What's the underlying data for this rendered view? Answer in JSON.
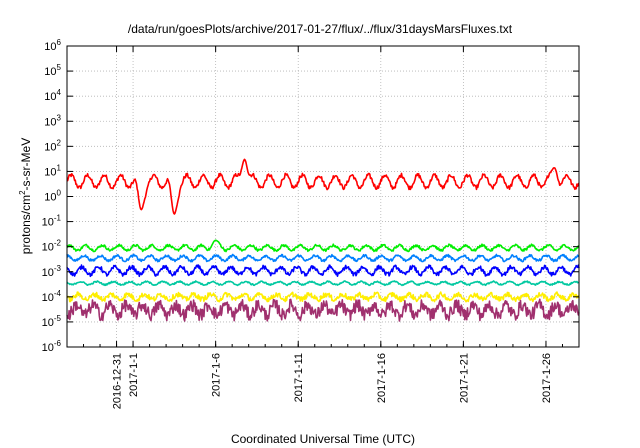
{
  "chart_data": {
    "type": "line",
    "title": "/data/run/goesPlots/archive/2017-01-27/flux/../flux/31daysMarsFluxes.txt",
    "xlabel": "Coordinated Universal Time (UTC)",
    "ylabel": "protons/cm²-s-sr-MeV",
    "y_scale": "log",
    "ylim": [
      1e-06,
      1000000.0
    ],
    "xlim": [
      "2016-12-28",
      "2017-01-28"
    ],
    "grid": true,
    "y_ticks": [
      {
        "value": 1e-06,
        "base": "10",
        "exp": "-6"
      },
      {
        "value": 1e-05,
        "base": "10",
        "exp": "-5"
      },
      {
        "value": 0.0001,
        "base": "10",
        "exp": "-4"
      },
      {
        "value": 0.001,
        "base": "10",
        "exp": "-3"
      },
      {
        "value": 0.01,
        "base": "10",
        "exp": "-2"
      },
      {
        "value": 0.1,
        "base": "10",
        "exp": "-1"
      },
      {
        "value": 1.0,
        "base": "10",
        "exp": "0"
      },
      {
        "value": 10.0,
        "base": "10",
        "exp": "1"
      },
      {
        "value": 100.0,
        "base": "10",
        "exp": "2"
      },
      {
        "value": 1000.0,
        "base": "10",
        "exp": "3"
      },
      {
        "value": 10000.0,
        "base": "10",
        "exp": "4"
      },
      {
        "value": 100000.0,
        "base": "10",
        "exp": "5"
      },
      {
        "value": 1000000.0,
        "base": "10",
        "exp": "6"
      }
    ],
    "x_ticks": [
      {
        "date": "2016-12-31",
        "label": "2016-12-31"
      },
      {
        "date": "2017-01-01",
        "label": "2017-1-1"
      },
      {
        "date": "2017-01-06",
        "label": "2017-1-6"
      },
      {
        "date": "2017-01-11",
        "label": "2017-1-11"
      },
      {
        "date": "2017-01-16",
        "label": "2017-1-16"
      },
      {
        "date": "2017-01-21",
        "label": "2017-1-21"
      },
      {
        "date": "2017-01-26",
        "label": "2017-1-26"
      }
    ],
    "series": [
      {
        "color": "#ff0000",
        "level": 4,
        "amplitude": 0.25,
        "period_days": 1.0,
        "noise": 0.08,
        "features": [
          {
            "date": "2017-01-01T12:00",
            "value": 0.3
          },
          {
            "date": "2017-01-03T12:00",
            "value": 0.2
          },
          {
            "date": "2017-01-07T18:00",
            "value": 30
          },
          {
            "date": "2017-01-26T12:00",
            "value": 14
          }
        ]
      },
      {
        "color": "#00ee00",
        "level": 0.009,
        "amplitude": 0.1,
        "period_days": 1.0,
        "noise": 0.05,
        "features": [
          {
            "date": "2017-01-06T00:00",
            "value": 0.018
          }
        ]
      },
      {
        "color": "#0080ff",
        "level": 0.0035,
        "amplitude": 0.1,
        "period_days": 1.0,
        "noise": 0.05,
        "features": []
      },
      {
        "color": "#0000ff",
        "level": 0.0011,
        "amplitude": 0.15,
        "period_days": 1.0,
        "noise": 0.08,
        "features": []
      },
      {
        "color": "#00c8a0",
        "level": 0.00035,
        "amplitude": 0.06,
        "period_days": 1.0,
        "noise": 0.03,
        "features": []
      },
      {
        "color": "#ffee00",
        "level": 0.0001,
        "amplitude": 0.1,
        "period_days": 1.0,
        "noise": 0.1,
        "features": []
      },
      {
        "color": "#a0306e",
        "level": 3e-05,
        "amplitude": 0.2,
        "period_days": 1.0,
        "noise": 0.25,
        "features": []
      }
    ]
  }
}
